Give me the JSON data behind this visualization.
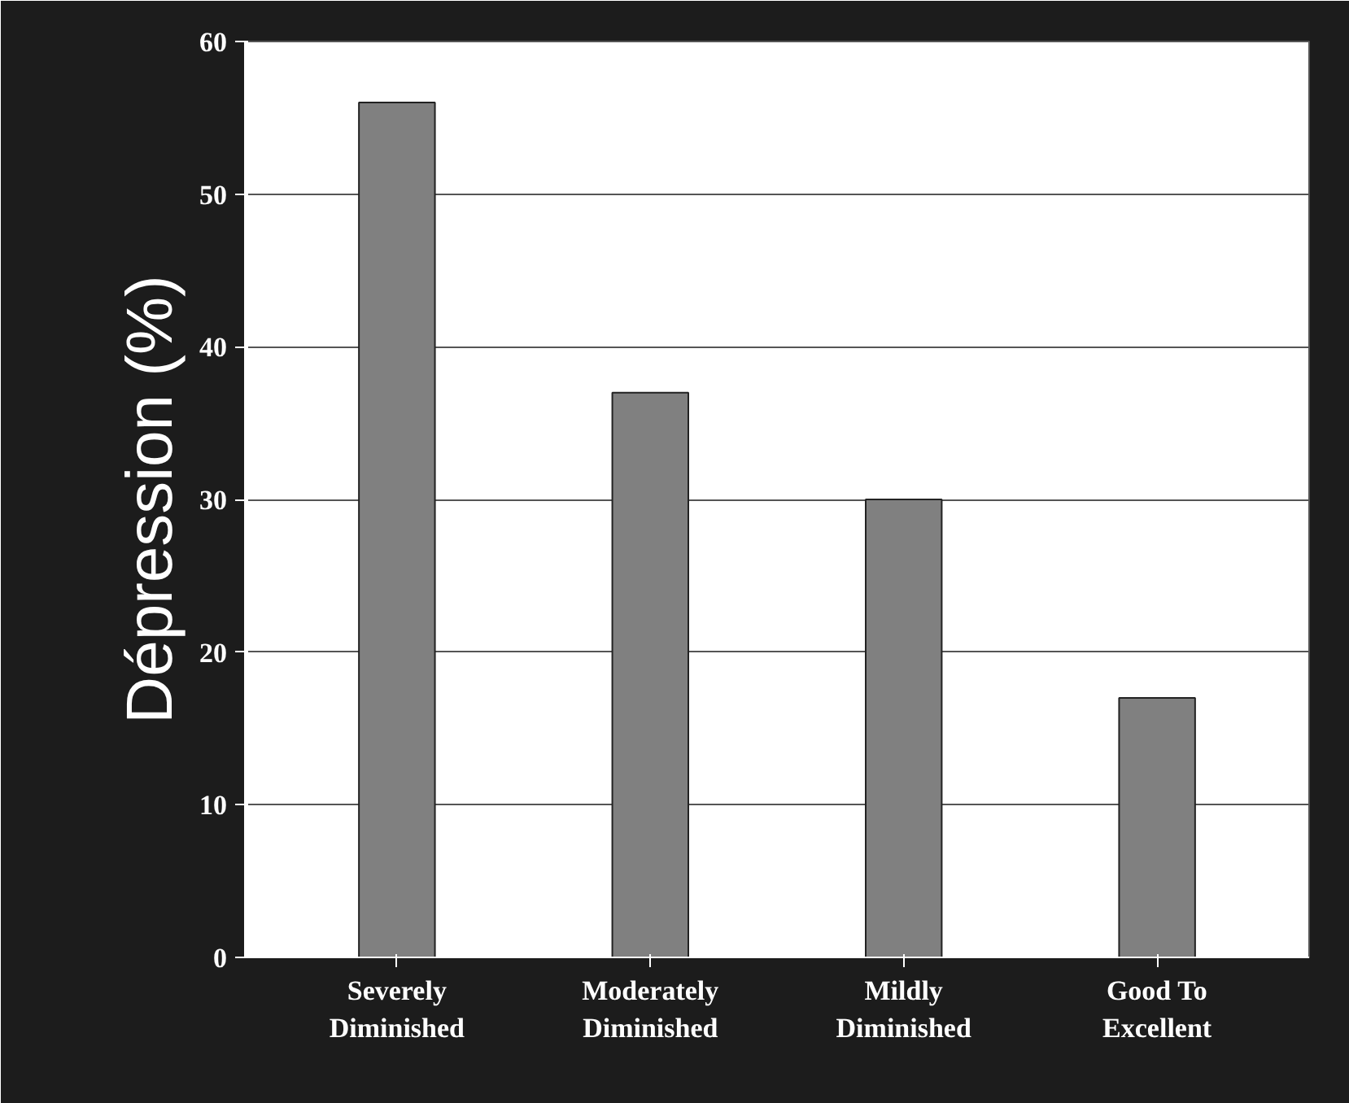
{
  "chart_data": {
    "type": "bar",
    "ylabel": "Dépression (%)",
    "categories": [
      "Severely\nDiminished",
      "Moderately\nDiminished",
      "Mildly\nDiminished",
      "Good To\nExcellent"
    ],
    "values": [
      56,
      37,
      30,
      17
    ],
    "color": "#808080",
    "ylim": [
      0,
      60
    ],
    "yticks": [
      0,
      10,
      20,
      30,
      40,
      50,
      60
    ],
    "grid": "y"
  }
}
